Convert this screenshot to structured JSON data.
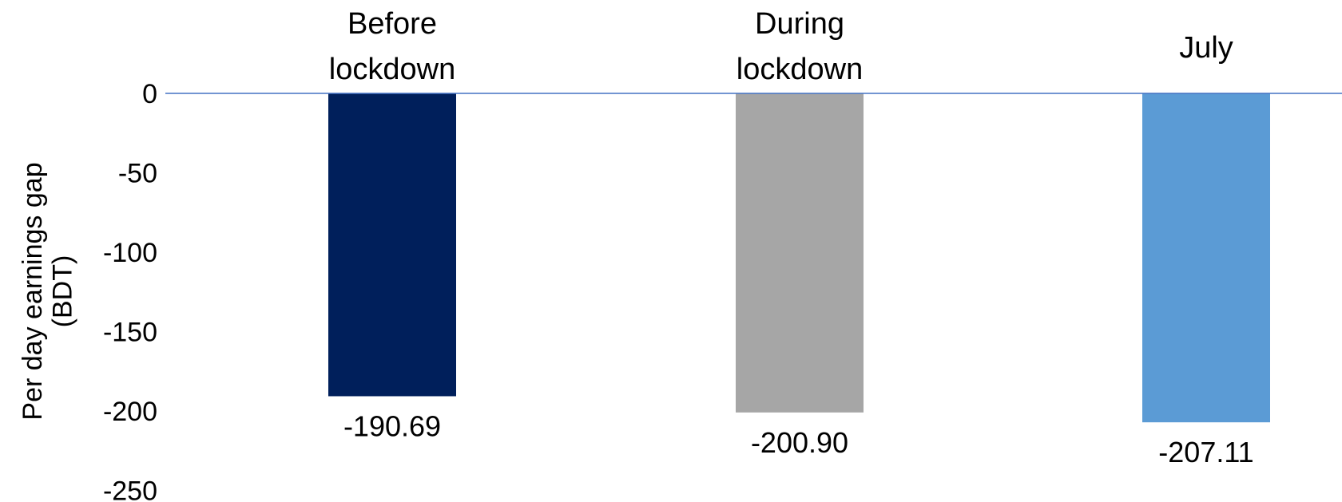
{
  "chart_data": {
    "type": "bar",
    "title": "",
    "xlabel": "",
    "ylabel_lines": [
      "Per day earnings gap",
      "(BDT)"
    ],
    "categories": [
      [
        "Before",
        "lockdown"
      ],
      [
        "During",
        "lockdown"
      ],
      [
        "July"
      ]
    ],
    "values": [
      -190.69,
      -200.9,
      -207.11
    ],
    "data_labels": [
      "-190.69",
      "-200.90",
      "-207.11"
    ],
    "bar_colors": [
      "#001f5b",
      "#a6a6a6",
      "#5b9bd5"
    ],
    "zero_line_color": "#4472c4",
    "ylim": [
      -250,
      0
    ],
    "yticks": [
      0,
      -50,
      -100,
      -150,
      -200,
      -250
    ],
    "grid": false,
    "legend": "none"
  }
}
